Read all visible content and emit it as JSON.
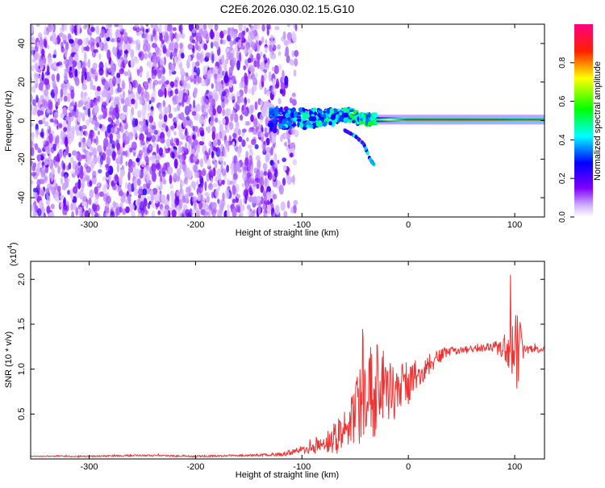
{
  "title": "C2E6.2026.030.02.15.G10",
  "chart_data": [
    {
      "type": "heatmap",
      "xlabel": "Height of straight line (km)",
      "ylabel": "Frequency (Hz)",
      "xlim": [
        -355,
        128
      ],
      "ylim": [
        -50,
        50
      ],
      "xticks": [
        -300,
        -200,
        -100,
        0,
        100
      ],
      "yticks": [
        -40,
        -20,
        0,
        20,
        40
      ],
      "colorbar": {
        "label": "Normalized spectral amplitude",
        "lim": [
          0,
          1
        ],
        "ticks": [
          0.0,
          0.2,
          0.4,
          0.6,
          0.8
        ],
        "tick_labels": [
          "0.0",
          "0.2",
          "0.4",
          "0.6",
          "0.8"
        ],
        "colormap": [
          "#ffffff",
          "#7f00ff",
          "#0000ff",
          "#00ffff",
          "#00ff00",
          "#ffff00",
          "#ff0000",
          "#ff0080"
        ]
      },
      "noise_region_x": [
        -355,
        -125
      ],
      "signal_trace": [
        {
          "x": -130,
          "y": 0.5,
          "amp": 0.35
        },
        {
          "x": -110,
          "y": 1.0,
          "amp": 0.4
        },
        {
          "x": -90,
          "y": 1.5,
          "amp": 0.45
        },
        {
          "x": -70,
          "y": 2.0,
          "amp": 0.45
        },
        {
          "x": -55,
          "y": 3.0,
          "amp": 0.55
        },
        {
          "x": -45,
          "y": 1.0,
          "amp": 0.5
        },
        {
          "x": -30,
          "y": 0.5,
          "amp": 0.6
        },
        {
          "x": 0,
          "y": 0.5,
          "amp": 0.9
        },
        {
          "x": 50,
          "y": 0.5,
          "amp": 0.9
        },
        {
          "x": 100,
          "y": 0.5,
          "amp": 0.85
        },
        {
          "x": 128,
          "y": 0.5,
          "amp": 0.85
        }
      ],
      "branch_trace": [
        {
          "x": -60,
          "y": -5
        },
        {
          "x": -50,
          "y": -8
        },
        {
          "x": -42,
          "y": -12
        },
        {
          "x": -36,
          "y": -20
        },
        {
          "x": -32,
          "y": -23
        }
      ]
    },
    {
      "type": "line",
      "xlabel": "Height of straight line (km)",
      "ylabel": "SNR (10 * v/v)",
      "y_multiplier": "(x10",
      "y_exponent": "4",
      "y_multiplier_close": ")",
      "xlim": [
        -355,
        128
      ],
      "ylim": [
        0,
        2.2
      ],
      "xticks": [
        -300,
        -200,
        -100,
        0,
        100
      ],
      "yticks": [
        0.5,
        1.0,
        1.5,
        2.0
      ],
      "ytick_labels": [
        "0.5",
        "1.0",
        "1.5",
        "2.0"
      ],
      "color": "#ee3333",
      "series": [
        {
          "x": [
            -355,
            -300,
            -250,
            -200,
            -150,
            -120,
            -100,
            -80,
            -60,
            -50,
            -40,
            -30,
            -20,
            -10,
            0,
            10,
            20,
            30,
            40,
            60,
            80,
            90,
            100,
            110,
            128
          ],
          "y": [
            0.03,
            0.03,
            0.04,
            0.03,
            0.04,
            0.05,
            0.1,
            0.15,
            0.3,
            0.5,
            0.7,
            0.8,
            0.75,
            0.75,
            0.85,
            0.95,
            1.05,
            1.15,
            1.2,
            1.22,
            1.24,
            1.25,
            1.23,
            1.22,
            1.22
          ],
          "noise": [
            0.005,
            0.008,
            0.01,
            0.01,
            0.01,
            0.02,
            0.05,
            0.1,
            0.25,
            0.35,
            0.5,
            0.55,
            0.4,
            0.3,
            0.25,
            0.15,
            0.1,
            0.08,
            0.05,
            0.04,
            0.06,
            0.15,
            0.6,
            0.05,
            0.03
          ]
        }
      ]
    }
  ]
}
